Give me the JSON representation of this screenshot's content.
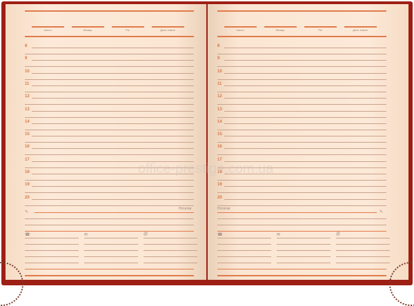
{
  "header_labels": [
    "Число",
    "Місяць",
    "Рік",
    "День тижня"
  ],
  "hours": [
    "8",
    "9",
    "10",
    "11",
    "12",
    "13",
    "14",
    "15",
    "16",
    "17",
    "18",
    "19",
    "20"
  ],
  "notes_label": "Нотатки",
  "icons": [
    "pencil-icon",
    "phone-icon",
    "envelope-icon",
    "at-icon"
  ],
  "watermark": "office-prestige.com.ua",
  "colors": {
    "cover": "#9e1f14",
    "page": "#fbe6d3",
    "accent": "#e07a4a"
  }
}
